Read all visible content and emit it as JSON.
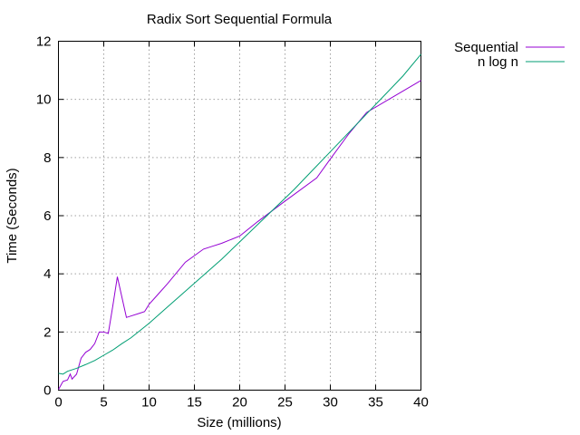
{
  "chart_data": {
    "type": "line",
    "title": "Radix Sort Sequential Formula",
    "xlabel": "Size (millions)",
    "ylabel": "Time (Seconds)",
    "xlim": [
      0,
      40
    ],
    "ylim": [
      0,
      12
    ],
    "xticks": [
      0,
      5,
      10,
      15,
      20,
      25,
      30,
      35,
      40
    ],
    "yticks": [
      0,
      2,
      4,
      6,
      8,
      10,
      12
    ],
    "grid": true,
    "legend_position": "outside-top-right",
    "series": [
      {
        "name": "Sequential",
        "color": "#9400d3",
        "x": [
          0,
          0.5,
          1,
          1.3,
          1.5,
          2,
          2.5,
          3,
          3.5,
          4,
          4.5,
          5,
          5.5,
          6,
          6.5,
          7,
          7.5,
          8,
          9,
          9.5,
          10,
          11,
          12,
          14,
          16,
          17,
          18,
          20,
          22,
          25,
          28.5,
          30,
          32,
          34,
          37,
          40
        ],
        "y": [
          0.02,
          0.3,
          0.35,
          0.55,
          0.38,
          0.55,
          1.1,
          1.3,
          1.4,
          1.6,
          2.0,
          2.0,
          1.95,
          2.9,
          3.9,
          3.2,
          2.5,
          2.55,
          2.65,
          2.7,
          2.95,
          3.3,
          3.65,
          4.4,
          4.85,
          4.95,
          5.05,
          5.3,
          5.8,
          6.5,
          7.3,
          7.95,
          8.8,
          9.55,
          10.1,
          10.65
        ]
      },
      {
        "name": "n log n",
        "color": "#009e73",
        "x": [
          0,
          0.5,
          1,
          2,
          3,
          4,
          5,
          6,
          7,
          8,
          10,
          12,
          14,
          16,
          18,
          20,
          22,
          24,
          26,
          28,
          30,
          32,
          34,
          36,
          38,
          40
        ],
        "y": [
          0.58,
          0.55,
          0.65,
          0.75,
          0.88,
          1.02,
          1.2,
          1.38,
          1.6,
          1.8,
          2.3,
          2.85,
          3.4,
          3.95,
          4.5,
          5.1,
          5.7,
          6.3,
          6.9,
          7.55,
          8.2,
          8.85,
          9.5,
          10.15,
          10.8,
          11.55
        ]
      }
    ]
  }
}
